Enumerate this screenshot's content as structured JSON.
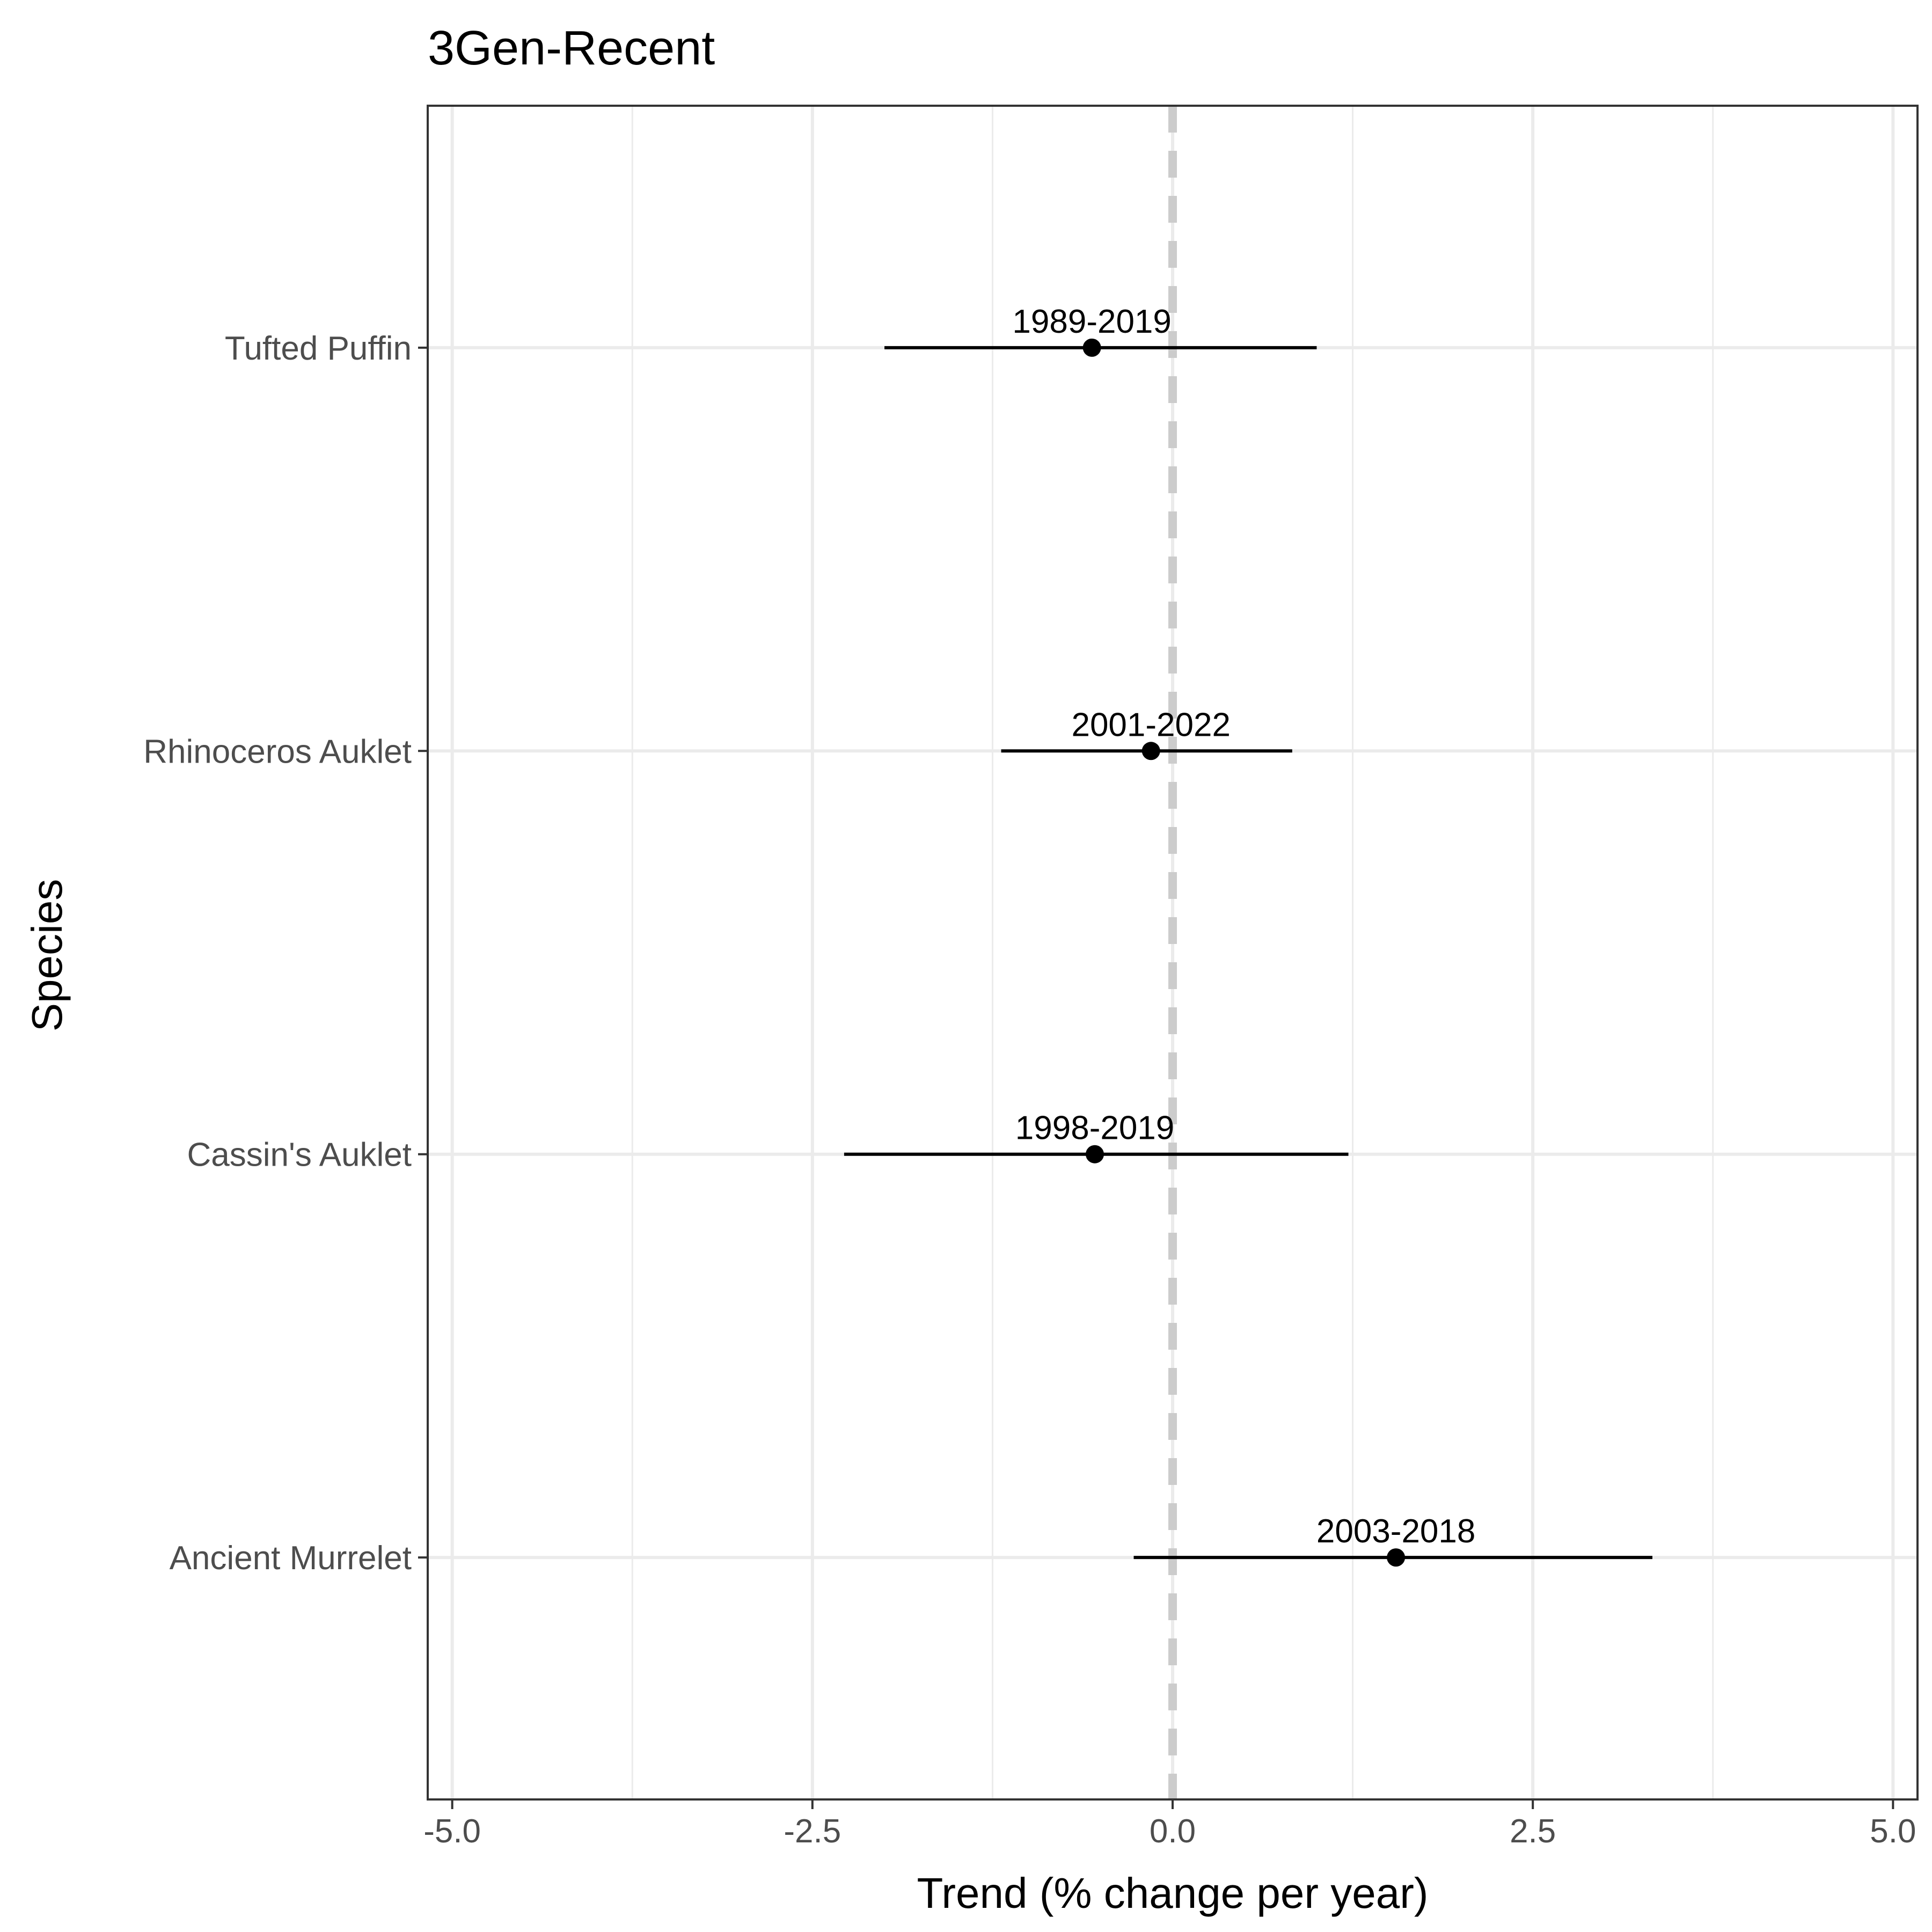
{
  "chart_data": {
    "type": "scatter",
    "title": "3Gen-Recent",
    "xlabel": "Trend (% change per year)",
    "ylabel": "Species",
    "xlim": [
      -5.17,
      5.17
    ],
    "x_ticks": [
      "-5.0",
      "-2.5",
      "0.0",
      "2.5",
      "5.0"
    ],
    "x_tick_values": [
      -5.0,
      -2.5,
      0.0,
      2.5,
      5.0
    ],
    "x_minor_ticks": [
      -3.75,
      -1.25,
      1.25,
      3.75
    ],
    "reference_line": {
      "x": 0,
      "style": "dashed",
      "color": "#cccccc"
    },
    "grid": true,
    "categories": [
      "Tufted Puffin",
      "Rhinoceros Auklet",
      "Cassin's Auklet",
      "Ancient Murrelet"
    ],
    "points": [
      {
        "species": "Tufted Puffin",
        "trend": -0.56,
        "lower": -2.0,
        "upper": 1.0,
        "label": "1989-2019"
      },
      {
        "species": "Rhinoceros Auklet",
        "trend": -0.15,
        "lower": -1.19,
        "upper": 0.83,
        "label": "2001-2022"
      },
      {
        "species": "Cassin's Auklet",
        "trend": -0.54,
        "lower": -2.28,
        "upper": 1.22,
        "label": "1998-2019"
      },
      {
        "species": "Ancient Murrelet",
        "trend": 1.55,
        "lower": -0.27,
        "upper": 3.33,
        "label": "2003-2018"
      }
    ],
    "colors": {
      "marks": "#000000",
      "grid": "#ebebeb",
      "panel_border": "#333333",
      "tick_text": "#4d4d4d"
    }
  }
}
